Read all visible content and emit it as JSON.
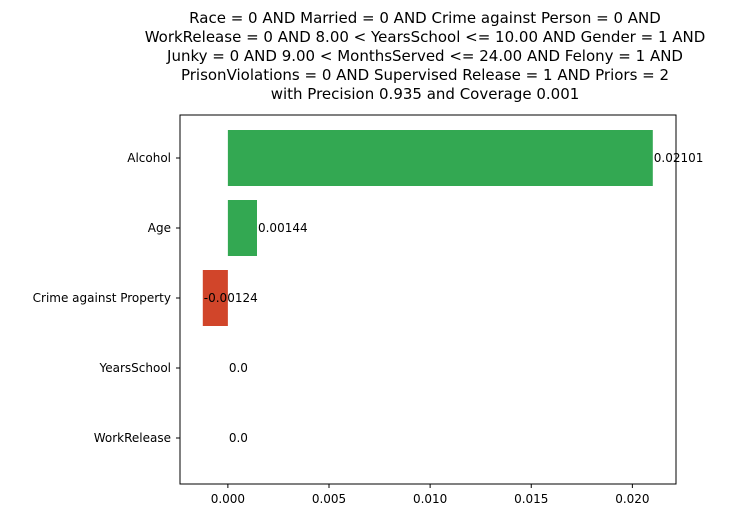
{
  "chart_data": {
    "type": "bar",
    "orientation": "horizontal",
    "title_lines": [
      "Race = 0 AND Married = 0 AND Crime against Person = 0 AND",
      "WorkRelease = 0 AND 8.00 < YearsSchool <= 10.00 AND Gender = 1 AND",
      "Junky = 0 AND 9.00 < MonthsServed <= 24.00 AND Felony = 1 AND",
      "PrisonViolations = 0 AND Supervised Release = 1 AND Priors = 2",
      "with Precision 0.935 and Coverage 0.001"
    ],
    "categories": [
      "Alcohol",
      "Age",
      "Crime against Property",
      "YearsSchool",
      "WorkRelease"
    ],
    "values": [
      0.02101,
      0.00144,
      -0.00124,
      0.0,
      0.0
    ],
    "value_labels": [
      "0.02101",
      "0.00144",
      "-0.00124",
      "0.0",
      "0.0"
    ],
    "xticks": [
      0.0,
      0.005,
      0.01,
      0.015,
      0.02
    ],
    "xtick_labels": [
      "0.000",
      "0.005",
      "0.010",
      "0.015",
      "0.020"
    ],
    "xlim": [
      -0.002367,
      0.022157
    ],
    "xlabel": "",
    "ylabel": "",
    "grid": false,
    "colors": {
      "positive": "#33a852",
      "negative": "#d1452a"
    }
  }
}
